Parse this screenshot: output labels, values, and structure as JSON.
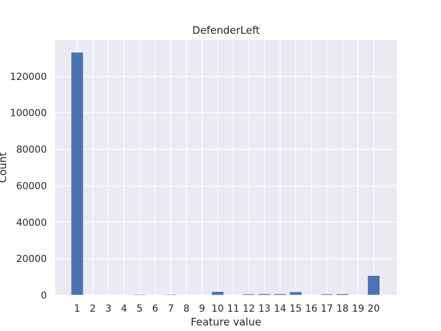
{
  "chart_data": {
    "type": "bar",
    "title": "DefenderLeft",
    "xlabel": "Feature value",
    "ylabel": "Count",
    "categories": [
      "1",
      "2",
      "3",
      "4",
      "5",
      "6",
      "7",
      "8",
      "9",
      "10",
      "11",
      "12",
      "13",
      "14",
      "15",
      "16",
      "17",
      "18",
      "19",
      "20"
    ],
    "values": [
      133300,
      150,
      120,
      150,
      500,
      200,
      500,
      150,
      100,
      2000,
      200,
      700,
      800,
      800,
      1900,
      300,
      700,
      800,
      150,
      10800
    ],
    "yticks": [
      0,
      20000,
      40000,
      60000,
      80000,
      100000,
      120000
    ],
    "ylim": [
      0,
      140000
    ],
    "grid": true,
    "colors": {
      "bar": "#4c72b0",
      "plot_bg": "#eaeaf2",
      "grid": "#ffffff"
    }
  }
}
